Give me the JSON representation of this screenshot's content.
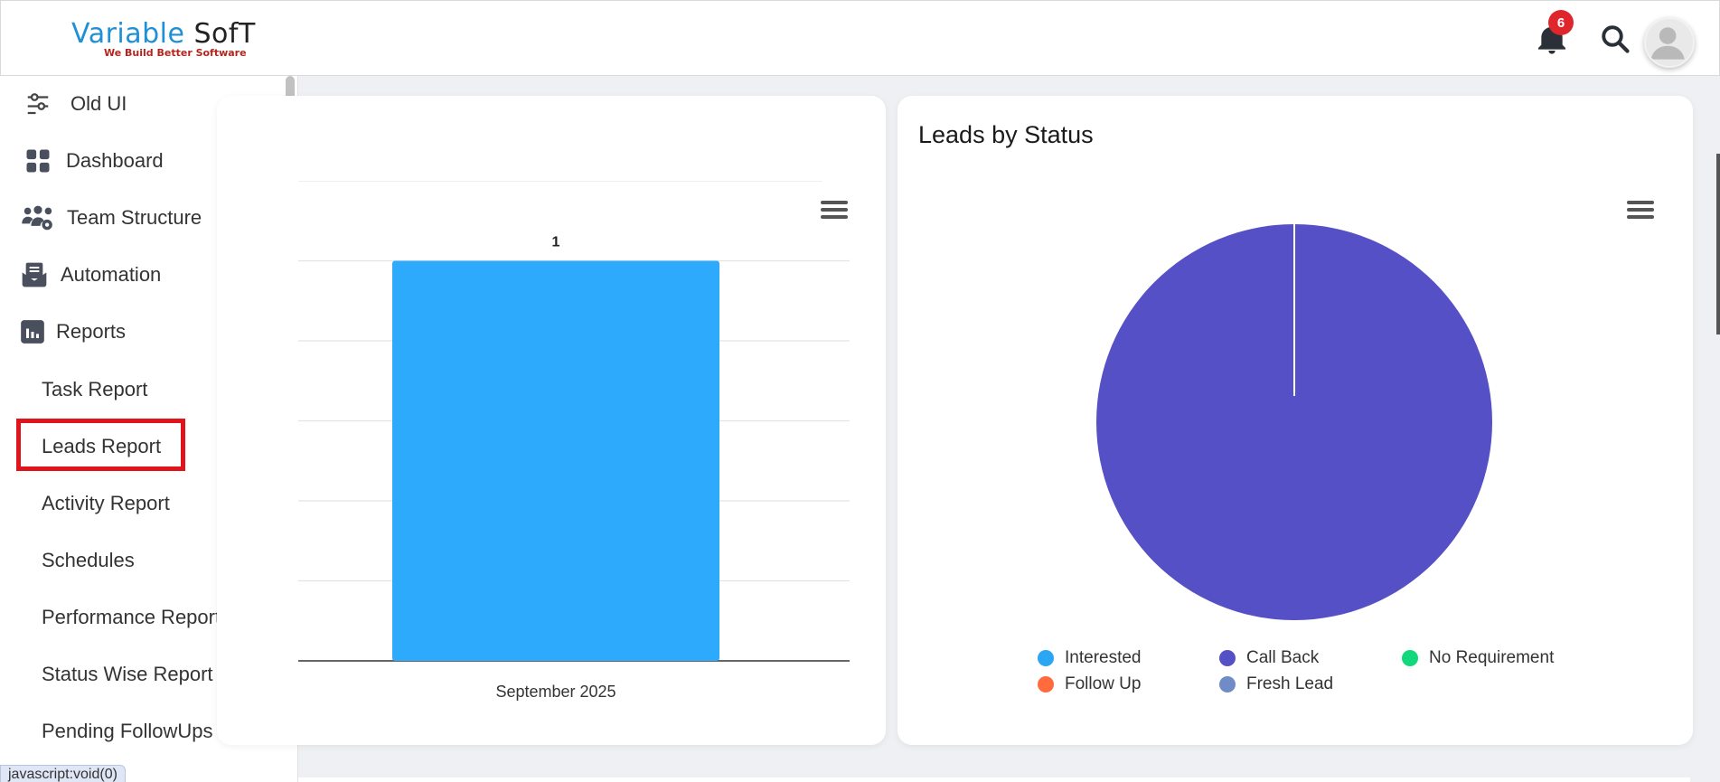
{
  "brand": {
    "name_part1": "Variable",
    "name_part2": "SofT",
    "tagline": "We Build Better Software"
  },
  "header": {
    "notification_count": "6"
  },
  "sidebar": {
    "items": [
      {
        "label": "Old UI",
        "icon": "sliders-icon"
      },
      {
        "label": "Dashboard",
        "icon": "grid-icon"
      },
      {
        "label": "Team Structure",
        "icon": "team-gear-icon"
      },
      {
        "label": "Automation",
        "icon": "envelope-icon"
      },
      {
        "label": "Reports",
        "icon": "bar-chart-icon"
      }
    ],
    "reports_sub": [
      "Task Report",
      "Leads Report",
      "Activity Report",
      "Schedules",
      "Performance Report",
      "Status Wise Report",
      "Pending FollowUps"
    ]
  },
  "status_bar": {
    "url": "javascript:void(0)"
  },
  "bar_card": {
    "title": ""
  },
  "pie_card": {
    "title": "Leads by Status"
  },
  "chart_data": [
    {
      "type": "bar",
      "title": "",
      "categories": [
        "September 2025"
      ],
      "values": [
        1
      ],
      "data_labels": [
        "1"
      ],
      "ylim": [
        0,
        1
      ],
      "colors": {
        "bar": "#2eaafc"
      }
    },
    {
      "type": "pie",
      "title": "Leads by Status",
      "labels": [
        "Interested",
        "Call Back",
        "No Requirement",
        "Follow Up",
        "Fresh Lead"
      ],
      "values": [
        0,
        1,
        0,
        0,
        0
      ],
      "colors": [
        "#2aa6f3",
        "#5550c6",
        "#11d87a",
        "#ff6b3d",
        "#6f8cc6"
      ],
      "legend_position": "bottom"
    }
  ]
}
